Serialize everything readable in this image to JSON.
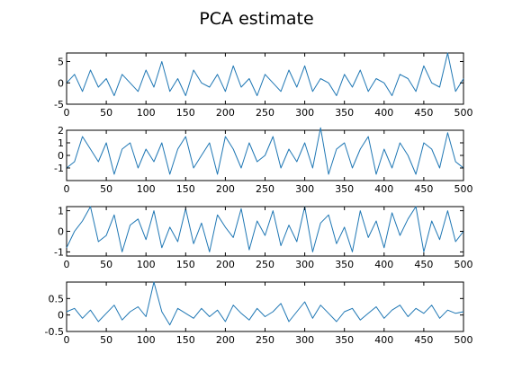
{
  "chart_data": {
    "type": "line",
    "title": "PCA estimate",
    "line_color": "#1f77b4",
    "grid": false,
    "legend": "none",
    "subplots": [
      {
        "xlim": [
          0,
          500
        ],
        "ylim": [
          -5,
          7
        ],
        "xticks": [
          0,
          50,
          100,
          150,
          200,
          250,
          300,
          350,
          400,
          450,
          500
        ],
        "yticks": [
          -5,
          0,
          5
        ],
        "series": {
          "x": [
            0,
            10,
            20,
            30,
            40,
            50,
            60,
            70,
            80,
            90,
            100,
            110,
            120,
            130,
            140,
            150,
            160,
            170,
            180,
            190,
            200,
            210,
            220,
            230,
            240,
            250,
            260,
            270,
            280,
            290,
            300,
            310,
            320,
            330,
            340,
            350,
            360,
            370,
            380,
            390,
            400,
            410,
            420,
            430,
            440,
            450,
            460,
            470,
            480,
            490,
            500
          ],
          "y": [
            0,
            2,
            -2,
            3,
            -1,
            1,
            -3,
            2,
            0,
            -2,
            3,
            -1,
            5,
            -2,
            1,
            -3,
            3,
            0,
            -1,
            2,
            -2,
            4,
            -1,
            1,
            -3,
            2,
            0,
            -2,
            3,
            -1,
            4,
            -2,
            1,
            0,
            -3,
            2,
            -1,
            3,
            -2,
            1,
            0,
            -3,
            2,
            1,
            -2,
            4,
            0,
            -1,
            7,
            -2,
            1
          ]
        }
      },
      {
        "xlim": [
          0,
          500
        ],
        "ylim": [
          -2,
          2
        ],
        "xticks": [
          0,
          50,
          100,
          150,
          200,
          250,
          300,
          350,
          400,
          450,
          500
        ],
        "yticks": [
          -1,
          0,
          1,
          2
        ],
        "series": {
          "x": [
            0,
            10,
            20,
            30,
            40,
            50,
            60,
            70,
            80,
            90,
            100,
            110,
            120,
            130,
            140,
            150,
            160,
            170,
            180,
            190,
            200,
            210,
            220,
            230,
            240,
            250,
            260,
            270,
            280,
            290,
            300,
            310,
            320,
            330,
            340,
            350,
            360,
            370,
            380,
            390,
            400,
            410,
            420,
            430,
            440,
            450,
            460,
            470,
            480,
            490,
            500
          ],
          "y": [
            -1,
            -0.5,
            1.5,
            0.5,
            -0.5,
            1,
            -1.5,
            0.5,
            1,
            -1,
            0.5,
            -0.5,
            1,
            -1.5,
            0.5,
            1.5,
            -1,
            0,
            1,
            -1.5,
            1.5,
            0.5,
            -1,
            1,
            -0.5,
            0,
            1.5,
            -1,
            0.5,
            -0.5,
            1,
            -1,
            2.2,
            -1.5,
            0.5,
            1,
            -1,
            0.5,
            1.5,
            -1.5,
            0.5,
            -1,
            1,
            0,
            -1.5,
            1,
            0.5,
            -1,
            1.8,
            -0.5,
            -1
          ]
        }
      },
      {
        "xlim": [
          0,
          500
        ],
        "ylim": [
          -1.2,
          1.2
        ],
        "xticks": [
          0,
          50,
          100,
          150,
          200,
          250,
          300,
          350,
          400,
          450,
          500
        ],
        "yticks": [
          -1,
          0,
          1
        ],
        "series": {
          "x": [
            0,
            10,
            20,
            30,
            40,
            50,
            60,
            70,
            80,
            90,
            100,
            110,
            120,
            130,
            140,
            150,
            160,
            170,
            180,
            190,
            200,
            210,
            220,
            230,
            240,
            250,
            260,
            270,
            280,
            290,
            300,
            310,
            320,
            330,
            340,
            350,
            360,
            370,
            380,
            390,
            400,
            410,
            420,
            430,
            440,
            450,
            460,
            470,
            480,
            490,
            500
          ],
          "y": [
            -0.8,
            0,
            0.5,
            1.2,
            -0.5,
            -0.2,
            0.8,
            -1,
            0.3,
            0.6,
            -0.4,
            1,
            -0.8,
            0.2,
            -0.5,
            1.1,
            -0.6,
            0.4,
            -1,
            0.8,
            0.2,
            -0.3,
            1.1,
            -0.9,
            0.5,
            -0.2,
            1,
            -0.7,
            0.3,
            -0.5,
            1.2,
            -1,
            0.4,
            0.8,
            -0.6,
            0.2,
            -1,
            1,
            -0.3,
            0.5,
            -0.8,
            0.9,
            -0.2,
            0.6,
            1.2,
            -1,
            0.5,
            -0.4,
            1,
            -0.5,
            0
          ]
        }
      },
      {
        "xlim": [
          0,
          500
        ],
        "ylim": [
          -0.5,
          1
        ],
        "xticks": [
          0,
          50,
          100,
          150,
          200,
          250,
          300,
          350,
          400,
          450,
          500
        ],
        "yticks": [
          -0.5,
          0,
          0.5
        ],
        "series": {
          "x": [
            0,
            10,
            20,
            30,
            40,
            50,
            60,
            70,
            80,
            90,
            100,
            110,
            120,
            130,
            140,
            150,
            160,
            170,
            180,
            190,
            200,
            210,
            220,
            230,
            240,
            250,
            260,
            270,
            280,
            290,
            300,
            310,
            320,
            330,
            340,
            350,
            360,
            370,
            380,
            390,
            400,
            410,
            420,
            430,
            440,
            450,
            460,
            470,
            480,
            490,
            500
          ],
          "y": [
            0.1,
            0.2,
            -0.1,
            0.15,
            -0.2,
            0.05,
            0.3,
            -0.15,
            0.1,
            0.25,
            -0.05,
            1,
            0.1,
            -0.3,
            0.2,
            0.05,
            -0.1,
            0.2,
            -0.05,
            0.15,
            -0.2,
            0.3,
            0.05,
            -0.15,
            0.2,
            -0.05,
            0.1,
            0.35,
            -0.2,
            0.1,
            0.4,
            -0.1,
            0.3,
            0.05,
            -0.2,
            0.1,
            0.2,
            -0.15,
            0.05,
            0.25,
            -0.1,
            0.15,
            0.3,
            -0.05,
            0.2,
            0.05,
            0.3,
            -0.1,
            0.15,
            0.05,
            0.1
          ]
        }
      }
    ]
  }
}
